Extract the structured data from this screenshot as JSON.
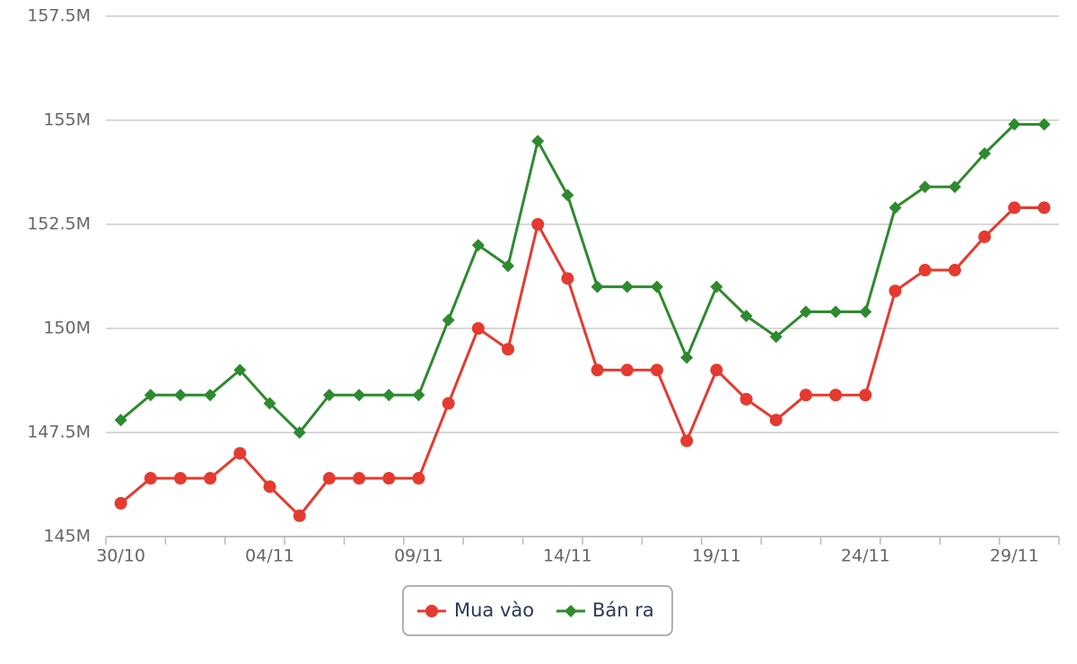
{
  "chart_data": {
    "type": "line",
    "categories": [
      "30/10",
      null,
      null,
      null,
      null,
      "04/11",
      null,
      null,
      null,
      null,
      "09/11",
      null,
      null,
      null,
      null,
      "14/11",
      null,
      null,
      null,
      null,
      "19/11",
      null,
      null,
      null,
      null,
      "24/11",
      null,
      null,
      null,
      null,
      "29/11",
      null
    ],
    "series": [
      {
        "name": "Mua vào",
        "color": "#e53a2f",
        "marker": "circle",
        "values": [
          145.8,
          146.4,
          146.4,
          146.4,
          147.0,
          146.2,
          145.5,
          146.4,
          146.4,
          146.4,
          146.4,
          148.2,
          150.0,
          149.5,
          152.5,
          151.2,
          149.0,
          149.0,
          149.0,
          147.3,
          149.0,
          148.3,
          147.8,
          148.4,
          148.4,
          148.4,
          150.9,
          151.4,
          151.4,
          152.2,
          152.9,
          152.9
        ]
      },
      {
        "name": "Bán ra",
        "color": "#2e8a2e",
        "marker": "diamond",
        "values": [
          147.8,
          148.4,
          148.4,
          148.4,
          149.0,
          148.2,
          147.5,
          148.4,
          148.4,
          148.4,
          148.4,
          150.2,
          152.0,
          151.5,
          154.5,
          153.2,
          151.0,
          151.0,
          151.0,
          149.3,
          151.0,
          150.3,
          149.8,
          150.4,
          150.4,
          150.4,
          152.9,
          153.4,
          153.4,
          154.2,
          154.9,
          154.9
        ]
      }
    ],
    "ylim": [
      145,
      157.5
    ],
    "yticks": [
      {
        "value": 145,
        "label": "145M"
      },
      {
        "value": 147.5,
        "label": "147.5M"
      },
      {
        "value": 150,
        "label": "150M"
      },
      {
        "value": 152.5,
        "label": "152.5M"
      },
      {
        "value": 155,
        "label": "155M"
      },
      {
        "value": 157.5,
        "label": "157.5M"
      }
    ],
    "grid": true,
    "legend": "bottom"
  }
}
